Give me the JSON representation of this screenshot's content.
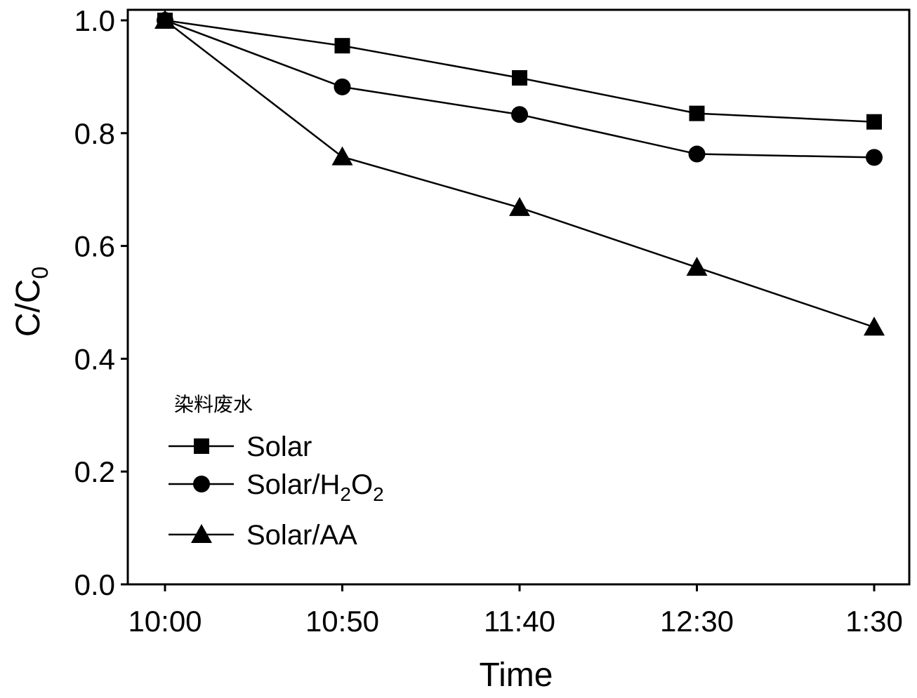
{
  "chart_data": {
    "type": "line",
    "xlabel": "Time",
    "ylabel": {
      "main": "C/C",
      "sub": "0"
    },
    "categories": [
      "10:00",
      "10:50",
      "11:40",
      "12:30",
      "1:30"
    ],
    "ylim": [
      0.0,
      1.0
    ],
    "yticks": [
      "0.0",
      "0.2",
      "0.4",
      "0.6",
      "0.8",
      "1.0"
    ],
    "grid": false,
    "legend": {
      "title": "染料废水",
      "placement": "lower-left"
    },
    "series": [
      {
        "name": "Solar",
        "label_parts": [
          "Solar"
        ],
        "marker": "square",
        "values": [
          1.0,
          0.955,
          0.898,
          0.835,
          0.82
        ]
      },
      {
        "name": "Solar/H2O2",
        "label_parts": [
          "Solar/H",
          "2",
          "O",
          "2"
        ],
        "marker": "circle",
        "values": [
          1.0,
          0.882,
          0.833,
          0.763,
          0.757
        ]
      },
      {
        "name": "Solar/AA",
        "label_parts": [
          "Solar/AA"
        ],
        "marker": "triangle",
        "values": [
          1.0,
          0.758,
          0.668,
          0.562,
          0.456
        ]
      }
    ]
  }
}
